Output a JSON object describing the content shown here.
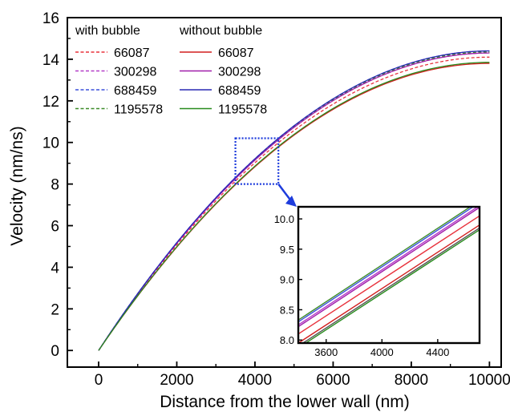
{
  "chart_data": {
    "type": "line",
    "xlabel": "Distance from the lower wall (nm)",
    "ylabel": "Velocity (nm/ns)",
    "xlim": [
      -800,
      10300
    ],
    "ylim": [
      -0.8,
      16
    ],
    "xticks": [
      0,
      2000,
      4000,
      6000,
      8000,
      10000
    ],
    "yticks": [
      0,
      2,
      4,
      6,
      8,
      10,
      12,
      14,
      16
    ],
    "legend": {
      "placement": "top-left",
      "group_headers": [
        "with bubble",
        "without bubble"
      ]
    },
    "series": [
      {
        "name": "66087",
        "group": "with bubble",
        "style": "dashed",
        "color": "#e8323c",
        "peak": 14.1
      },
      {
        "name": "300298",
        "group": "with bubble",
        "style": "dashed",
        "color": "#b43cc8",
        "peak": 14.3
      },
      {
        "name": "688459",
        "group": "with bubble",
        "style": "dashed",
        "color": "#3c50dc",
        "peak": 14.4
      },
      {
        "name": "1195578",
        "group": "with bubble",
        "style": "dashed",
        "color": "#3c8c28",
        "peak": 14.35
      },
      {
        "name": "66087",
        "group": "without bubble",
        "style": "solid",
        "color": "#d21e1e",
        "peak": 13.8
      },
      {
        "name": "300298",
        "group": "without bubble",
        "style": "solid",
        "color": "#a01eaa",
        "peak": 14.3
      },
      {
        "name": "688459",
        "group": "without bubble",
        "style": "solid",
        "color": "#2828b4",
        "peak": 14.4
      },
      {
        "name": "1195578",
        "group": "without bubble",
        "style": "solid",
        "color": "#288c1e",
        "peak": 13.85
      }
    ],
    "inset": {
      "xlim": [
        3400,
        4700
      ],
      "ylim": [
        7.95,
        10.2
      ],
      "xticks": [
        3600,
        4000,
        4400
      ],
      "yticks": [
        8.0,
        8.5,
        9.0,
        9.5,
        10.0
      ],
      "xtick_labels": [
        "3600",
        "4000",
        "4400"
      ],
      "ytick_labels": [
        "8.0",
        "8.5",
        "9.0",
        "9.5",
        "10.0"
      ],
      "zoom_region": {
        "x": [
          3500,
          4600
        ],
        "y": [
          8.0,
          10.2
        ]
      },
      "series": [
        {
          "color": "#3c8c28",
          "at_x": [
            3400,
            4700
          ],
          "y": [
            8.33,
            10.3
          ]
        },
        {
          "color": "#3c50dc",
          "at_x": [
            3400,
            4700
          ],
          "y": [
            8.3,
            10.27
          ]
        },
        {
          "color": "#b43cc8",
          "at_x": [
            3400,
            4700
          ],
          "y": [
            8.25,
            10.22
          ]
        },
        {
          "color": "#a01eaa",
          "at_x": [
            3400,
            4700
          ],
          "y": [
            8.22,
            10.19
          ]
        },
        {
          "color": "#e8323c",
          "at_x": [
            3400,
            4700
          ],
          "y": [
            8.1,
            10.05
          ]
        },
        {
          "color": "#d21e1e",
          "at_x": [
            3400,
            4700
          ],
          "y": [
            7.95,
            9.9
          ]
        },
        {
          "color": "#555555",
          "at_x": [
            3400,
            4700
          ],
          "y": [
            7.9,
            9.85
          ]
        },
        {
          "color": "#288c1e",
          "at_x": [
            3400,
            4700
          ],
          "y": [
            7.87,
            9.82
          ]
        }
      ]
    },
    "zoom_box_color": "#1e3cdc"
  }
}
